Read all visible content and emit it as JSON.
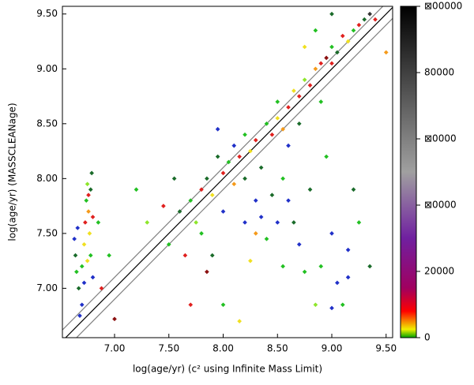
{
  "chart_data": {
    "type": "scatter",
    "xlabel": "log(age/yr) (c² using Infinite Mass Limit)",
    "ylabel": "log(age/yr) (MASSCLEANage)",
    "xlim": [
      6.52,
      9.56
    ],
    "ylim": [
      6.55,
      9.57
    ],
    "xticks": [
      {
        "value": 7,
        "label": "7.00"
      },
      {
        "value": 7.5,
        "label": "7.50"
      },
      {
        "value": 8,
        "label": "8.00"
      },
      {
        "value": 8.5,
        "label": "8.50"
      },
      {
        "value": 9,
        "label": "9.00"
      },
      {
        "value": 9.5,
        "label": "9.50"
      }
    ],
    "yticks": [
      {
        "value": 7,
        "label": "7.00"
      },
      {
        "value": 7.5,
        "label": "7.50"
      },
      {
        "value": 8,
        "label": "8.00"
      },
      {
        "value": 8.5,
        "label": "8.50"
      },
      {
        "value": 9,
        "label": "9.00"
      },
      {
        "value": 9.5,
        "label": "9.50"
      }
    ],
    "reference_lines": [
      {
        "intercept": 0,
        "color": "#000000"
      },
      {
        "intercept": 0.1,
        "color": "#808080"
      },
      {
        "intercept": -0.1,
        "color": "#808080"
      }
    ],
    "series": [
      {
        "x": [
          6.63,
          6.64,
          6.65,
          6.66,
          6.67,
          6.7,
          6.7,
          6.72,
          6.73,
          6.74,
          6.75,
          6.76,
          6.77,
          6.78,
          6.78,
          6.79,
          6.8,
          6.8,
          6.75,
          6.72,
          6.68,
          6.76,
          6.85,
          6.88,
          6.95,
          7.0,
          7.7,
          7.75,
          7.8,
          7.85,
          7.9,
          7.95,
          8.0,
          8.0,
          8.05,
          8.1,
          8.1,
          8.15,
          8.2,
          8.2,
          8.25,
          8.3,
          8.3,
          8.35,
          8.4,
          8.45,
          8.5,
          8.5,
          8.55,
          8.6,
          8.6,
          8.65,
          8.7,
          8.7,
          8.75,
          8.8,
          8.85,
          8.9,
          8.9,
          8.95,
          9.0,
          9.0,
          9.05,
          9.1,
          9.15,
          9.2,
          9.25,
          9.3,
          9.35,
          9.4,
          9.5,
          9.0,
          8.85,
          8.75,
          7.2,
          7.3,
          7.5,
          7.6,
          7.65,
          7.8,
          7.9,
          8.0,
          7.7,
          8.15,
          8.2,
          8.3,
          8.4,
          8.5,
          8.55,
          8.6,
          8.7,
          8.75,
          8.8,
          8.9,
          9.0,
          9.05,
          9.1,
          9.15,
          9.2,
          9.25,
          9.15,
          9.0,
          8.85,
          8.45,
          8.35,
          8.25,
          7.95,
          8.55,
          8.65,
          8.95,
          9.35,
          7.85,
          7.45,
          7.55
        ],
        "values": [
          7.45,
          7.3,
          7.15,
          7.55,
          7.0,
          6.85,
          7.2,
          7.4,
          7.6,
          7.8,
          7.95,
          7.7,
          7.5,
          7.3,
          7.9,
          8.05,
          7.1,
          7.65,
          7.25,
          7.05,
          6.75,
          7.85,
          7.6,
          7.0,
          7.3,
          6.72,
          7.8,
          7.6,
          7.9,
          8.0,
          7.85,
          8.2,
          8.05,
          7.7,
          8.15,
          8.3,
          7.95,
          8.2,
          8.0,
          8.4,
          8.25,
          8.35,
          7.8,
          8.1,
          8.5,
          8.4,
          8.55,
          8.7,
          8.45,
          8.65,
          8.3,
          8.8,
          8.75,
          8.5,
          8.9,
          8.85,
          9.0,
          9.05,
          8.7,
          9.1,
          9.05,
          9.2,
          9.15,
          9.3,
          9.25,
          9.35,
          9.4,
          9.45,
          9.5,
          9.45,
          9.15,
          9.5,
          9.35,
          9.2,
          7.9,
          7.6,
          7.4,
          7.7,
          7.3,
          7.5,
          7.3,
          6.85,
          6.85,
          6.7,
          7.6,
          7.5,
          7.45,
          7.6,
          7.2,
          7.8,
          7.4,
          7.15,
          7.9,
          7.2,
          7.5,
          7.05,
          6.85,
          7.35,
          7.9,
          7.6,
          7.1,
          6.82,
          6.85,
          7.85,
          7.65,
          7.25,
          8.45,
          8.0,
          7.6,
          8.2,
          7.2,
          7.15,
          7.75,
          8.0
        ],
        "colors": [
          "#2030c8",
          "#1a6b2a",
          "#22c022",
          "#2030c8",
          "#1a6b2a",
          "#2030c8",
          "#22c022",
          "#f0e020",
          "#e0201e",
          "#22c022",
          "#8ee62b",
          "#f59a1a",
          "#f0e020",
          "#22c022",
          "#1a6b2a",
          "#1a6b2a",
          "#2030c8",
          "#e0201e",
          "#f0e020",
          "#2030c8",
          "#2030c8",
          "#e0201e",
          "#22c022",
          "#e0201e",
          "#22c022",
          "#8b1010",
          "#22c022",
          "#8ee62b",
          "#e0201e",
          "#1a6b2a",
          "#f0e020",
          "#1a6b2a",
          "#e0201e",
          "#2030c8",
          "#22c022",
          "#2030c8",
          "#f59a1a",
          "#e0201e",
          "#1a6b2a",
          "#22c022",
          "#f0e020",
          "#e0201e",
          "#2030c8",
          "#1a6b2a",
          "#22c022",
          "#e0201e",
          "#f0e020",
          "#22c022",
          "#f59a1a",
          "#e0201e",
          "#2030c8",
          "#f0e020",
          "#e0201e",
          "#1a6b2a",
          "#8ee62b",
          "#e0201e",
          "#f59a1a",
          "#e0201e",
          "#22c022",
          "#8b1010",
          "#e0201e",
          "#22c022",
          "#1a6b2a",
          "#e0201e",
          "#f0e020",
          "#22c022",
          "#e0201e",
          "#1a6b2a",
          "#333333",
          "#e0201e",
          "#f59a1a",
          "#1a6b2a",
          "#22c022",
          "#f0e020",
          "#22c022",
          "#8ee62b",
          "#22c022",
          "#1a6b2a",
          "#e0201e",
          "#22c022",
          "#1a6b2a",
          "#22c022",
          "#e0201e",
          "#f0e020",
          "#2030c8",
          "#f59a1a",
          "#22c022",
          "#2030c8",
          "#22c022",
          "#2030c8",
          "#2030c8",
          "#22c022",
          "#1a6b2a",
          "#22c022",
          "#2030c8",
          "#2030c8",
          "#22c022",
          "#2030c8",
          "#1a6b2a",
          "#22c022",
          "#2030c8",
          "#2030c8",
          "#8ee62b",
          "#1a6b2a",
          "#2030c8",
          "#f0e020",
          "#2030c8",
          "#22c022",
          "#1a6b2a",
          "#22c022",
          "#1a6b2a",
          "#8b1010",
          "#e0201e",
          "#1a6b2a"
        ]
      }
    ],
    "colorbar": {
      "lim": [
        0,
        100000
      ],
      "ticks": [
        0,
        20000,
        {
          "value": 40000,
          "label": "⊠0000"
        },
        {
          "value": 60000,
          "label": "⊠0000"
        },
        80000,
        {
          "value": 100000,
          "label": "⊠00000"
        }
      ],
      "stops": [
        {
          "value": 0,
          "color": "#00a000"
        },
        {
          "value": 2500,
          "color": "#f0f000"
        },
        {
          "value": 8000,
          "color": "#ff0000"
        },
        {
          "value": 15000,
          "color": "#a00060"
        },
        {
          "value": 30000,
          "color": "#7020a0"
        },
        {
          "value": 50000,
          "color": "#a0a0a0"
        },
        {
          "value": 100000,
          "color": "#000000"
        }
      ]
    }
  }
}
